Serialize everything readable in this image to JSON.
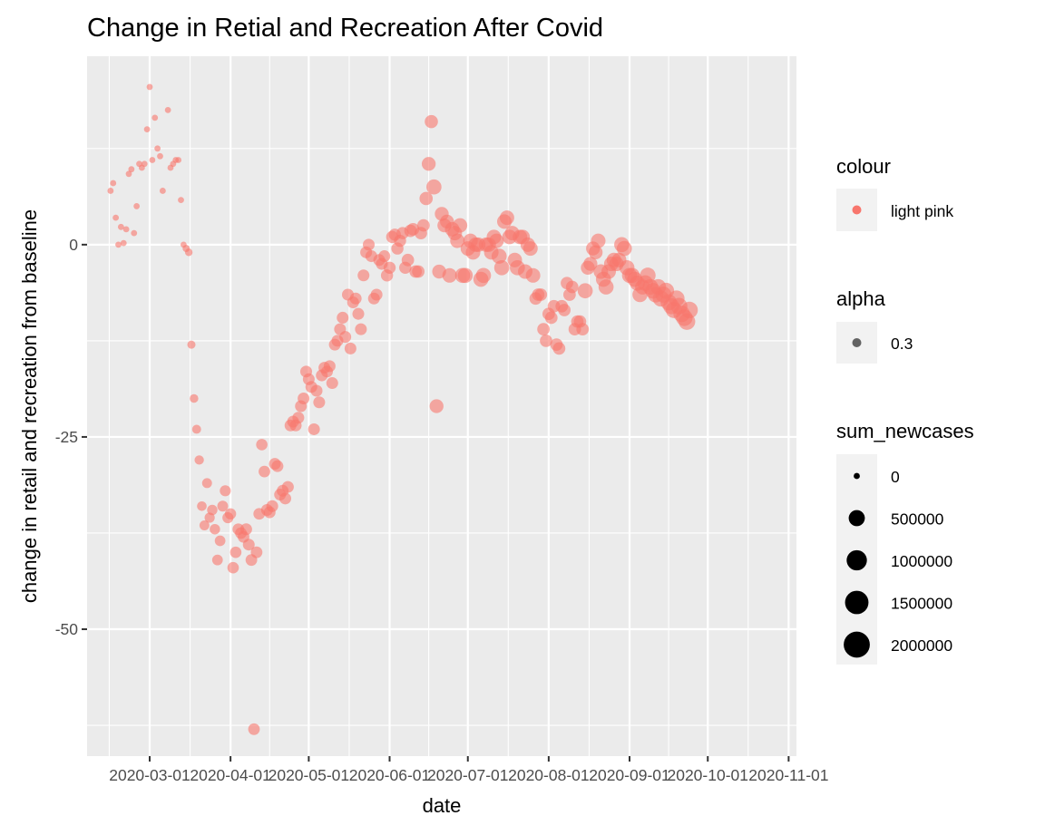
{
  "chart_data": {
    "type": "scatter",
    "title": "Change in Retial and Recreation After Covid",
    "xlabel": "date",
    "ylabel": "change in retail and recreation from baseline",
    "x_axis": {
      "type": "date",
      "range": [
        "2020-02-06",
        "2020-11-04"
      ],
      "ticks": [
        "2020-03-01",
        "2020-04-01",
        "2020-05-01",
        "2020-06-01",
        "2020-07-01",
        "2020-08-01",
        "2020-09-01",
        "2020-10-01",
        "2020-11-01"
      ]
    },
    "y_axis": {
      "range": [
        -66.5,
        24.5
      ],
      "ticks": [
        -50,
        -25,
        0
      ]
    },
    "grid": true,
    "point_color": "#F8766D",
    "point_alpha": 0.6,
    "legends": [
      {
        "title": "colour",
        "kind": "color",
        "entries": [
          {
            "label": "light pink",
            "color": "#F8766D"
          }
        ]
      },
      {
        "title": "alpha",
        "kind": "alpha",
        "entries": [
          {
            "label": "0.3",
            "color": "#333333"
          }
        ]
      },
      {
        "title": "sum_newcases",
        "kind": "size",
        "entries": [
          {
            "label": "0",
            "value": 0
          },
          {
            "label": "500000",
            "value": 500000
          },
          {
            "label": "1000000",
            "value": 1000000
          },
          {
            "label": "1500000",
            "value": 1500000
          },
          {
            "label": "2000000",
            "value": 2000000
          }
        ]
      }
    ],
    "points": [
      {
        "x": "2020-02-15",
        "y": 7,
        "s": 0
      },
      {
        "x": "2020-02-16",
        "y": 8,
        "s": 0
      },
      {
        "x": "2020-02-17",
        "y": 3.5,
        "s": 0
      },
      {
        "x": "2020-02-18",
        "y": 0,
        "s": 0
      },
      {
        "x": "2020-02-19",
        "y": 2.3,
        "s": 0
      },
      {
        "x": "2020-02-20",
        "y": 0.2,
        "s": 0
      },
      {
        "x": "2020-02-21",
        "y": 2,
        "s": 0
      },
      {
        "x": "2020-02-22",
        "y": 9.2,
        "s": 0
      },
      {
        "x": "2020-02-23",
        "y": 9.8,
        "s": 0
      },
      {
        "x": "2020-02-24",
        "y": 1.5,
        "s": 0
      },
      {
        "x": "2020-02-25",
        "y": 5,
        "s": 0
      },
      {
        "x": "2020-02-26",
        "y": 10.5,
        "s": 0
      },
      {
        "x": "2020-02-27",
        "y": 10,
        "s": 0
      },
      {
        "x": "2020-02-28",
        "y": 10.5,
        "s": 0
      },
      {
        "x": "2020-02-29",
        "y": 15,
        "s": 0
      },
      {
        "x": "2020-03-01",
        "y": 20.5,
        "s": 0
      },
      {
        "x": "2020-03-02",
        "y": 11,
        "s": 0
      },
      {
        "x": "2020-03-03",
        "y": 16.5,
        "s": 0
      },
      {
        "x": "2020-03-04",
        "y": 12.5,
        "s": 0
      },
      {
        "x": "2020-03-05",
        "y": 11.5,
        "s": 0
      },
      {
        "x": "2020-03-06",
        "y": 7,
        "s": 0
      },
      {
        "x": "2020-03-08",
        "y": 17.5,
        "s": 0
      },
      {
        "x": "2020-03-09",
        "y": 10,
        "s": 0
      },
      {
        "x": "2020-03-10",
        "y": 10.5,
        "s": 0
      },
      {
        "x": "2020-03-11",
        "y": 11,
        "s": 0
      },
      {
        "x": "2020-03-12",
        "y": 11,
        "s": 0
      },
      {
        "x": "2020-03-13",
        "y": 5.8,
        "s": 0
      },
      {
        "x": "2020-03-14",
        "y": 0,
        "s": 0
      },
      {
        "x": "2020-03-15",
        "y": -0.5,
        "s": 5000
      },
      {
        "x": "2020-03-16",
        "y": -1,
        "s": 10000
      },
      {
        "x": "2020-03-17",
        "y": -13,
        "s": 20000
      },
      {
        "x": "2020-03-18",
        "y": -20,
        "s": 30000
      },
      {
        "x": "2020-03-19",
        "y": -24,
        "s": 40000
      },
      {
        "x": "2020-03-20",
        "y": -28,
        "s": 50000
      },
      {
        "x": "2020-03-21",
        "y": -34,
        "s": 60000
      },
      {
        "x": "2020-03-22",
        "y": -36.5,
        "s": 70000
      },
      {
        "x": "2020-03-23",
        "y": -31,
        "s": 70000
      },
      {
        "x": "2020-03-24",
        "y": -35.5,
        "s": 80000
      },
      {
        "x": "2020-03-25",
        "y": -34.5,
        "s": 90000
      },
      {
        "x": "2020-03-26",
        "y": -37,
        "s": 90000
      },
      {
        "x": "2020-03-27",
        "y": -41,
        "s": 100000
      },
      {
        "x": "2020-03-28",
        "y": -38.5,
        "s": 100000
      },
      {
        "x": "2020-03-29",
        "y": -34,
        "s": 110000
      },
      {
        "x": "2020-03-30",
        "y": -32,
        "s": 120000
      },
      {
        "x": "2020-03-31",
        "y": -35.5,
        "s": 120000
      },
      {
        "x": "2020-04-01",
        "y": -35,
        "s": 130000
      },
      {
        "x": "2020-04-02",
        "y": -42,
        "s": 140000
      },
      {
        "x": "2020-04-03",
        "y": -40,
        "s": 140000
      },
      {
        "x": "2020-04-04",
        "y": -37,
        "s": 150000
      },
      {
        "x": "2020-04-05",
        "y": -37.5,
        "s": 150000
      },
      {
        "x": "2020-04-06",
        "y": -38,
        "s": 150000
      },
      {
        "x": "2020-04-07",
        "y": -37,
        "s": 160000
      },
      {
        "x": "2020-04-08",
        "y": -39,
        "s": 160000
      },
      {
        "x": "2020-04-09",
        "y": -41,
        "s": 150000
      },
      {
        "x": "2020-04-10",
        "y": -63,
        "s": 150000
      },
      {
        "x": "2020-04-11",
        "y": -40,
        "s": 150000
      },
      {
        "x": "2020-04-12",
        "y": -35,
        "s": 150000
      },
      {
        "x": "2020-04-13",
        "y": -26,
        "s": 140000
      },
      {
        "x": "2020-04-14",
        "y": -29.5,
        "s": 150000
      },
      {
        "x": "2020-04-15",
        "y": -34.5,
        "s": 160000
      },
      {
        "x": "2020-04-16",
        "y": -34.8,
        "s": 160000
      },
      {
        "x": "2020-04-17",
        "y": -34,
        "s": 160000
      },
      {
        "x": "2020-04-18",
        "y": -28.5,
        "s": 160000
      },
      {
        "x": "2020-04-19",
        "y": -28.8,
        "s": 160000
      },
      {
        "x": "2020-04-20",
        "y": -32.5,
        "s": 160000
      },
      {
        "x": "2020-04-21",
        "y": -32,
        "s": 160000
      },
      {
        "x": "2020-04-22",
        "y": -33,
        "s": 160000
      },
      {
        "x": "2020-04-23",
        "y": -31.5,
        "s": 160000
      },
      {
        "x": "2020-04-24",
        "y": -23.5,
        "s": 160000
      },
      {
        "x": "2020-04-25",
        "y": -23,
        "s": 160000
      },
      {
        "x": "2020-04-26",
        "y": -23.5,
        "s": 160000
      },
      {
        "x": "2020-04-27",
        "y": -22.5,
        "s": 160000
      },
      {
        "x": "2020-04-28",
        "y": -21,
        "s": 160000
      },
      {
        "x": "2020-04-29",
        "y": -20,
        "s": 160000
      },
      {
        "x": "2020-04-30",
        "y": -16.5,
        "s": 160000
      },
      {
        "x": "2020-05-01",
        "y": -17.5,
        "s": 160000
      },
      {
        "x": "2020-05-02",
        "y": -18.5,
        "s": 160000
      },
      {
        "x": "2020-05-03",
        "y": -24,
        "s": 160000
      },
      {
        "x": "2020-05-04",
        "y": -19,
        "s": 160000
      },
      {
        "x": "2020-05-05",
        "y": -20.5,
        "s": 160000
      },
      {
        "x": "2020-05-06",
        "y": -17,
        "s": 160000
      },
      {
        "x": "2020-05-07",
        "y": -16,
        "s": 160000
      },
      {
        "x": "2020-05-08",
        "y": -16.5,
        "s": 160000
      },
      {
        "x": "2020-05-09",
        "y": -15.8,
        "s": 160000
      },
      {
        "x": "2020-05-10",
        "y": -18,
        "s": 160000
      },
      {
        "x": "2020-05-11",
        "y": -13,
        "s": 160000
      },
      {
        "x": "2020-05-12",
        "y": -12.5,
        "s": 160000
      },
      {
        "x": "2020-05-13",
        "y": -11,
        "s": 160000
      },
      {
        "x": "2020-05-14",
        "y": -9.5,
        "s": 160000
      },
      {
        "x": "2020-05-15",
        "y": -12,
        "s": 160000
      },
      {
        "x": "2020-05-16",
        "y": -6.5,
        "s": 160000
      },
      {
        "x": "2020-05-17",
        "y": -13.5,
        "s": 160000
      },
      {
        "x": "2020-05-18",
        "y": -7.5,
        "s": 160000
      },
      {
        "x": "2020-05-19",
        "y": -7,
        "s": 160000
      },
      {
        "x": "2020-05-20",
        "y": -9,
        "s": 160000
      },
      {
        "x": "2020-05-21",
        "y": -11,
        "s": 160000
      },
      {
        "x": "2020-05-22",
        "y": -4,
        "s": 160000
      },
      {
        "x": "2020-05-23",
        "y": -1,
        "s": 160000
      },
      {
        "x": "2020-05-24",
        "y": 0,
        "s": 160000
      },
      {
        "x": "2020-05-25",
        "y": -1.5,
        "s": 160000
      },
      {
        "x": "2020-05-26",
        "y": -7,
        "s": 160000
      },
      {
        "x": "2020-05-27",
        "y": -6.5,
        "s": 160000
      },
      {
        "x": "2020-05-28",
        "y": -2,
        "s": 160000
      },
      {
        "x": "2020-05-29",
        "y": -2.5,
        "s": 160000
      },
      {
        "x": "2020-05-30",
        "y": -1.5,
        "s": 160000
      },
      {
        "x": "2020-05-31",
        "y": -4,
        "s": 180000
      },
      {
        "x": "2020-06-01",
        "y": -3,
        "s": 180000
      },
      {
        "x": "2020-06-02",
        "y": 1,
        "s": 180000
      },
      {
        "x": "2020-06-03",
        "y": 1.3,
        "s": 180000
      },
      {
        "x": "2020-06-04",
        "y": -0.5,
        "s": 180000
      },
      {
        "x": "2020-06-05",
        "y": 0.5,
        "s": 180000
      },
      {
        "x": "2020-06-06",
        "y": 1.5,
        "s": 180000
      },
      {
        "x": "2020-06-07",
        "y": -3,
        "s": 180000
      },
      {
        "x": "2020-06-08",
        "y": -2,
        "s": 200000
      },
      {
        "x": "2020-06-09",
        "y": 1.8,
        "s": 200000
      },
      {
        "x": "2020-06-10",
        "y": 2,
        "s": 200000
      },
      {
        "x": "2020-06-11",
        "y": -3.5,
        "s": 200000
      },
      {
        "x": "2020-06-12",
        "y": -3.5,
        "s": 200000
      },
      {
        "x": "2020-06-13",
        "y": 1.5,
        "s": 200000
      },
      {
        "x": "2020-06-14",
        "y": 2.5,
        "s": 200000
      },
      {
        "x": "2020-06-15",
        "y": 6,
        "s": 250000
      },
      {
        "x": "2020-06-16",
        "y": 10.5,
        "s": 300000
      },
      {
        "x": "2020-06-17",
        "y": 16,
        "s": 250000
      },
      {
        "x": "2020-06-18",
        "y": 7.5,
        "s": 400000
      },
      {
        "x": "2020-06-19",
        "y": -21,
        "s": 300000
      },
      {
        "x": "2020-06-20",
        "y": -3.5,
        "s": 300000
      },
      {
        "x": "2020-06-21",
        "y": 4,
        "s": 300000
      },
      {
        "x": "2020-06-22",
        "y": 2.5,
        "s": 300000
      },
      {
        "x": "2020-06-23",
        "y": 3,
        "s": 300000
      },
      {
        "x": "2020-06-24",
        "y": -4,
        "s": 350000
      },
      {
        "x": "2020-06-25",
        "y": 2,
        "s": 350000
      },
      {
        "x": "2020-06-26",
        "y": 1.5,
        "s": 350000
      },
      {
        "x": "2020-06-27",
        "y": 0.5,
        "s": 350000
      },
      {
        "x": "2020-06-28",
        "y": 2.5,
        "s": 350000
      },
      {
        "x": "2020-06-29",
        "y": -4,
        "s": 400000
      },
      {
        "x": "2020-06-30",
        "y": -4,
        "s": 400000
      },
      {
        "x": "2020-07-01",
        "y": -0.5,
        "s": 350000
      },
      {
        "x": "2020-07-02",
        "y": 0.5,
        "s": 350000
      },
      {
        "x": "2020-07-03",
        "y": -1,
        "s": 350000
      },
      {
        "x": "2020-07-04",
        "y": 0,
        "s": 350000
      },
      {
        "x": "2020-07-05",
        "y": 0,
        "s": 350000
      },
      {
        "x": "2020-07-06",
        "y": -4.5,
        "s": 400000
      },
      {
        "x": "2020-07-07",
        "y": -4,
        "s": 400000
      },
      {
        "x": "2020-07-08",
        "y": 0,
        "s": 350000
      },
      {
        "x": "2020-07-09",
        "y": 0,
        "s": 350000
      },
      {
        "x": "2020-07-10",
        "y": -1,
        "s": 350000
      },
      {
        "x": "2020-07-11",
        "y": 1,
        "s": 350000
      },
      {
        "x": "2020-07-12",
        "y": 0.5,
        "s": 350000
      },
      {
        "x": "2020-07-13",
        "y": -1.5,
        "s": 400000
      },
      {
        "x": "2020-07-14",
        "y": -3,
        "s": 400000
      },
      {
        "x": "2020-07-15",
        "y": 3,
        "s": 350000
      },
      {
        "x": "2020-07-16",
        "y": 3.5,
        "s": 350000
      },
      {
        "x": "2020-07-17",
        "y": 1,
        "s": 350000
      },
      {
        "x": "2020-07-18",
        "y": 1.5,
        "s": 350000
      },
      {
        "x": "2020-07-19",
        "y": -2,
        "s": 350000
      },
      {
        "x": "2020-07-20",
        "y": -3,
        "s": 400000
      },
      {
        "x": "2020-07-21",
        "y": 1,
        "s": 350000
      },
      {
        "x": "2020-07-22",
        "y": 1,
        "s": 350000
      },
      {
        "x": "2020-07-23",
        "y": -3.5,
        "s": 350000
      },
      {
        "x": "2020-07-24",
        "y": 0,
        "s": 350000
      },
      {
        "x": "2020-07-25",
        "y": -0.5,
        "s": 350000
      },
      {
        "x": "2020-07-26",
        "y": -4,
        "s": 350000
      },
      {
        "x": "2020-07-27",
        "y": -7,
        "s": 200000
      },
      {
        "x": "2020-07-28",
        "y": -6.5,
        "s": 200000
      },
      {
        "x": "2020-07-29",
        "y": -6.5,
        "s": 200000
      },
      {
        "x": "2020-07-30",
        "y": -11,
        "s": 200000
      },
      {
        "x": "2020-07-31",
        "y": -12.5,
        "s": 200000
      },
      {
        "x": "2020-08-01",
        "y": -9,
        "s": 200000
      },
      {
        "x": "2020-08-02",
        "y": -9.5,
        "s": 200000
      },
      {
        "x": "2020-08-03",
        "y": -8,
        "s": 200000
      },
      {
        "x": "2020-08-04",
        "y": -13,
        "s": 200000
      },
      {
        "x": "2020-08-05",
        "y": -13.5,
        "s": 200000
      },
      {
        "x": "2020-08-06",
        "y": -8,
        "s": 200000
      },
      {
        "x": "2020-08-07",
        "y": -8.5,
        "s": 200000
      },
      {
        "x": "2020-08-08",
        "y": -5,
        "s": 200000
      },
      {
        "x": "2020-08-09",
        "y": -6.5,
        "s": 200000
      },
      {
        "x": "2020-08-10",
        "y": -5.5,
        "s": 200000
      },
      {
        "x": "2020-08-11",
        "y": -11,
        "s": 200000
      },
      {
        "x": "2020-08-12",
        "y": -10,
        "s": 200000
      },
      {
        "x": "2020-08-13",
        "y": -10,
        "s": 200000
      },
      {
        "x": "2020-08-14",
        "y": -11,
        "s": 200000
      },
      {
        "x": "2020-08-15",
        "y": -6,
        "s": 400000
      },
      {
        "x": "2020-08-16",
        "y": -3,
        "s": 300000
      },
      {
        "x": "2020-08-17",
        "y": -2.5,
        "s": 300000
      },
      {
        "x": "2020-08-18",
        "y": -0.5,
        "s": 300000
      },
      {
        "x": "2020-08-19",
        "y": -1,
        "s": 300000
      },
      {
        "x": "2020-08-20",
        "y": 0.5,
        "s": 350000
      },
      {
        "x": "2020-08-21",
        "y": -3.5,
        "s": 350000
      },
      {
        "x": "2020-08-22",
        "y": -4.5,
        "s": 400000
      },
      {
        "x": "2020-08-23",
        "y": -5.5,
        "s": 400000
      },
      {
        "x": "2020-08-24",
        "y": -3.5,
        "s": 350000
      },
      {
        "x": "2020-08-25",
        "y": -2.5,
        "s": 350000
      },
      {
        "x": "2020-08-26",
        "y": -2,
        "s": 350000
      },
      {
        "x": "2020-08-27",
        "y": -2.5,
        "s": 350000
      },
      {
        "x": "2020-08-28",
        "y": -2,
        "s": 350000
      },
      {
        "x": "2020-08-29",
        "y": 0,
        "s": 400000
      },
      {
        "x": "2020-08-30",
        "y": -0.5,
        "s": 400000
      },
      {
        "x": "2020-08-31",
        "y": -3,
        "s": 400000
      },
      {
        "x": "2020-09-01",
        "y": -4,
        "s": 400000
      },
      {
        "x": "2020-09-02",
        "y": -4,
        "s": 400000
      },
      {
        "x": "2020-09-03",
        "y": -4.5,
        "s": 400000
      },
      {
        "x": "2020-09-04",
        "y": -5,
        "s": 400000
      },
      {
        "x": "2020-09-05",
        "y": -6.5,
        "s": 400000
      },
      {
        "x": "2020-09-06",
        "y": -5.5,
        "s": 400000
      },
      {
        "x": "2020-09-07",
        "y": -5,
        "s": 450000
      },
      {
        "x": "2020-09-08",
        "y": -4,
        "s": 450000
      },
      {
        "x": "2020-09-09",
        "y": -5.5,
        "s": 450000
      },
      {
        "x": "2020-09-10",
        "y": -6,
        "s": 450000
      },
      {
        "x": "2020-09-11",
        "y": -6.5,
        "s": 450000
      },
      {
        "x": "2020-09-12",
        "y": -5.5,
        "s": 450000
      },
      {
        "x": "2020-09-13",
        "y": -7,
        "s": 500000
      },
      {
        "x": "2020-09-14",
        "y": -6.5,
        "s": 500000
      },
      {
        "x": "2020-09-15",
        "y": -6,
        "s": 500000
      },
      {
        "x": "2020-09-16",
        "y": -7.5,
        "s": 500000
      },
      {
        "x": "2020-09-17",
        "y": -8,
        "s": 500000
      },
      {
        "x": "2020-09-18",
        "y": -8.5,
        "s": 500000
      },
      {
        "x": "2020-09-19",
        "y": -7,
        "s": 500000
      },
      {
        "x": "2020-09-20",
        "y": -8,
        "s": 550000
      },
      {
        "x": "2020-09-21",
        "y": -9,
        "s": 550000
      },
      {
        "x": "2020-09-22",
        "y": -9.5,
        "s": 550000
      },
      {
        "x": "2020-09-23",
        "y": -10,
        "s": 550000
      },
      {
        "x": "2020-09-24",
        "y": -8.5,
        "s": 550000
      }
    ]
  }
}
